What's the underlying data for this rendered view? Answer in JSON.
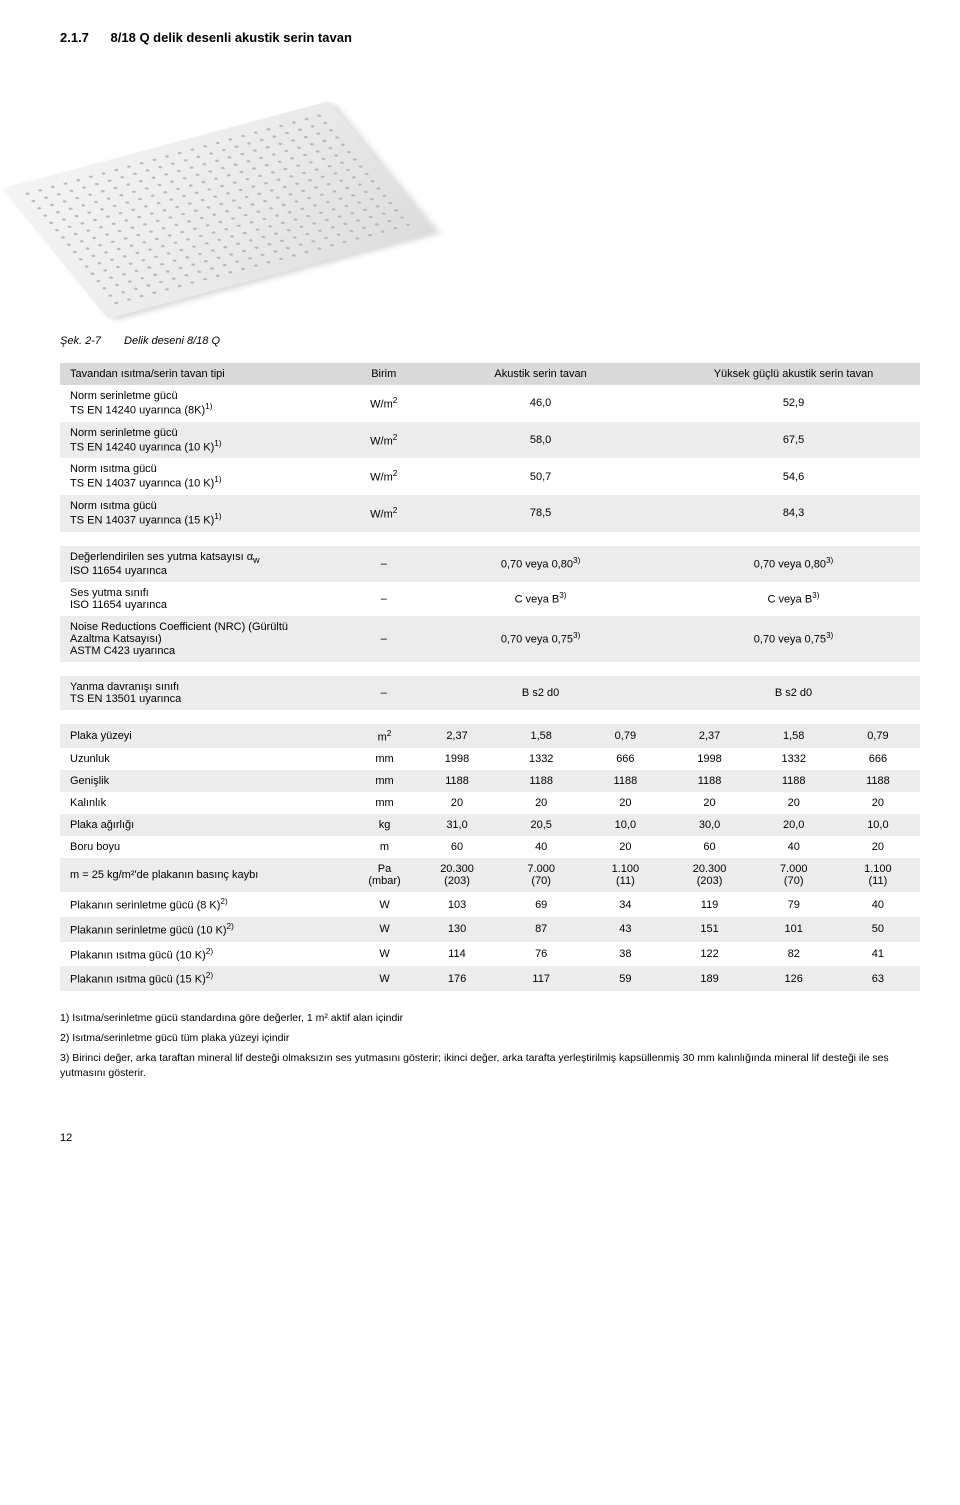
{
  "header": {
    "number": "2.1.7",
    "title": "8/18 Q delik desenli akustik serin tavan"
  },
  "caption": {
    "label": "Şek. 2-7",
    "text": "Delik deseni 8/18 Q"
  },
  "table1": {
    "head": {
      "c0": "Tavandan ısıtma/serin tavan tipi",
      "c1": "Birim",
      "c2": "Akustik serin tavan",
      "c3": "Yüksek güçlü akustik serin tavan"
    },
    "rows": [
      {
        "lab": "Norm serinletme gücü",
        "sub": "TS EN 14240 uyarınca (8K)",
        "sup": "1)",
        "unit": "W/m",
        "usup": "2",
        "v1": "46,0",
        "v2": "52,9"
      },
      {
        "lab": "Norm serinletme gücü",
        "sub": "TS EN 14240 uyarınca (10 K)",
        "sup": "1)",
        "unit": "W/m",
        "usup": "2",
        "v1": "58,0",
        "v2": "67,5"
      },
      {
        "lab": "Norm ısıtma gücü",
        "sub": "TS EN 14037 uyarınca (10 K)",
        "sup": "1)",
        "unit": "W/m",
        "usup": "2",
        "v1": "50,7",
        "v2": "54,6"
      },
      {
        "lab": "Norm ısıtma gücü",
        "sub": "TS EN 14037 uyarınca (15 K)",
        "sup": "1)",
        "unit": "W/m",
        "usup": "2",
        "v1": "78,5",
        "v2": "84,3"
      }
    ]
  },
  "table2": {
    "rows": [
      {
        "lab": "Değerlendirilen ses yutma katsayısı α",
        "labsub": "w",
        "sub": "ISO 11654 uyarınca",
        "unit": "–",
        "v1": "0,70 veya 0,80",
        "s1": "3)",
        "v2": "0,70 veya 0,80",
        "s2": "3)"
      },
      {
        "lab": "Ses yutma sınıfı",
        "sub": "ISO 11654 uyarınca",
        "unit": "–",
        "v1": "C veya B",
        "s1": "3)",
        "v2": "C veya B",
        "s2": "3)"
      },
      {
        "lab": "Noise Reductions Coefficient (NRC) (Gürültü",
        "lab2": "Azaltma Katsayısı)",
        "sub": "ASTM C423 uyarınca",
        "unit": "–",
        "v1": "0,70 veya 0,75",
        "s1": "3)",
        "v2": "0,70 veya 0,75",
        "s2": "3)"
      }
    ]
  },
  "table3": {
    "rows": [
      {
        "lab": "Yanma davranışı sınıfı",
        "sub": "TS EN 13501 uyarınca",
        "unit": "–",
        "v1": "B s2 d0",
        "v2": "B s2 d0"
      }
    ]
  },
  "table4": {
    "rows": [
      {
        "lab": "Plaka yüzeyi",
        "unit": "m",
        "usup": "2",
        "c": [
          "2,37",
          "1,58",
          "0,79",
          "2,37",
          "1,58",
          "0,79"
        ]
      },
      {
        "lab": "Uzunluk",
        "unit": "mm",
        "c": [
          "1998",
          "1332",
          "666",
          "1998",
          "1332",
          "666"
        ]
      },
      {
        "lab": "Genişlik",
        "unit": "mm",
        "c": [
          "1188",
          "1188",
          "1188",
          "1188",
          "1188",
          "1188"
        ]
      },
      {
        "lab": "Kalınlık",
        "unit": "mm",
        "c": [
          "20",
          "20",
          "20",
          "20",
          "20",
          "20"
        ]
      },
      {
        "lab": "Plaka ağırlığı",
        "unit": "kg",
        "c": [
          "31,0",
          "20,5",
          "10,0",
          "30,0",
          "20,0",
          "10,0"
        ]
      },
      {
        "lab": "Boru boyu",
        "unit": "m",
        "c": [
          "60",
          "40",
          "20",
          "60",
          "40",
          "20"
        ]
      },
      {
        "lab": "m = 25 kg/m²'de plakanın basınç kaybı",
        "unit": "Pa",
        "unit2": "(mbar)",
        "c": [
          "20.300",
          "7.000",
          "1.100",
          "20.300",
          "7.000",
          "1.100"
        ],
        "c2": [
          "(203)",
          "(70)",
          "(11)",
          "(203)",
          "(70)",
          "(11)"
        ]
      },
      {
        "lab": "Plakanın serinletme gücü (8 K)",
        "lsup": "2)",
        "unit": "W",
        "c": [
          "103",
          "69",
          "34",
          "119",
          "79",
          "40"
        ]
      },
      {
        "lab": "Plakanın serinletme gücü (10 K)",
        "lsup": "2)",
        "unit": "W",
        "c": [
          "130",
          "87",
          "43",
          "151",
          "101",
          "50"
        ]
      },
      {
        "lab": "Plakanın ısıtma gücü (10 K)",
        "lsup": "2)",
        "unit": "W",
        "c": [
          "114",
          "76",
          "38",
          "122",
          "82",
          "41"
        ]
      },
      {
        "lab": "Plakanın ısıtma gücü (15 K)",
        "lsup": "2)",
        "unit": "W",
        "c": [
          "176",
          "117",
          "59",
          "189",
          "126",
          "63"
        ]
      }
    ]
  },
  "footnotes": {
    "f1": "1) Isıtma/serinletme gücü standardına göre değerler, 1 m² aktif alan içindir",
    "f2": "2) Isıtma/serinletme gücü tüm plaka yüzeyi içindir",
    "f3": "3) Birinci değer, arka taraftan mineral lif desteği olmaksızın ses yutmasını gösterir; ikinci değer, arka tarafta yerleştirilmiş kapsüllenmiş 30 mm kalınlığında mineral lif desteği ile ses yutmasını gösterir."
  },
  "pagenum": "12"
}
